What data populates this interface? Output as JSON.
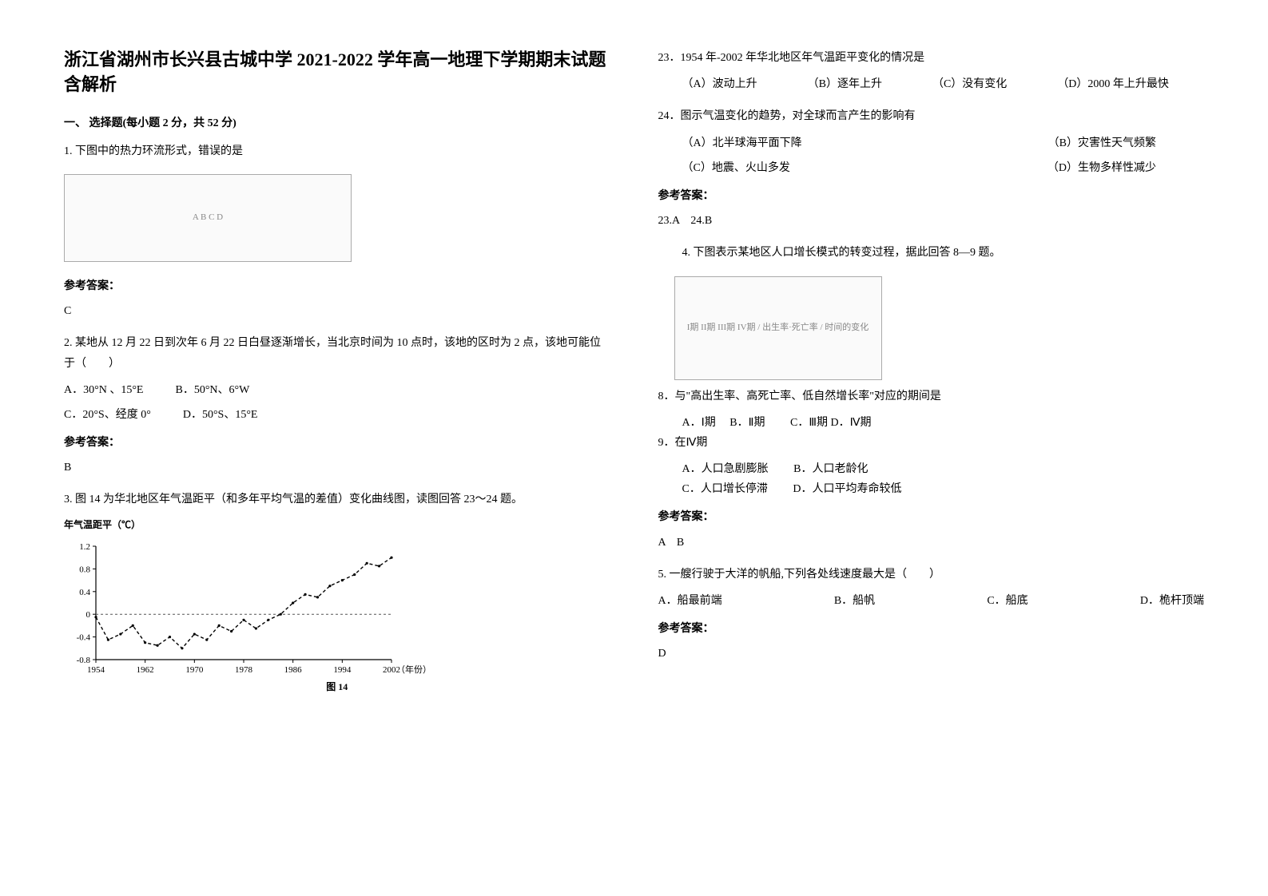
{
  "doc": {
    "title": "浙江省湖州市长兴县古城中学 2021-2022 学年高一地理下学期期末试题含解析",
    "section1_heading": "一、 选择题(每小题 2 分，共 52 分)"
  },
  "q1": {
    "text": "1. 下图中的热力环流形式，错误的是",
    "fig_labels": "A  B  C  D",
    "answer_label": "参考答案：",
    "answer": "C"
  },
  "q2": {
    "text": "2. 某地从 12 月 22 日到次年 6 月 22 日白昼逐渐增长，当北京时间为 10 点时，该地的区时为 2 点，该地可能位于（　　）",
    "optA": "A．30°N 、15°E",
    "optB": "B．50°N、6°W",
    "optC": "C．20°S、经度 0°",
    "optD": "D．50°S、15°E",
    "answer_label": "参考答案：",
    "answer": "B"
  },
  "q3": {
    "text": "3. 图 14 为华北地区年气温距平（和多年平均气温的差值）变化曲线图，读图回答 23～24 题。",
    "chart": {
      "type": "line",
      "ylabel": "年气温距平（℃）",
      "xlabel": "（年份）",
      "caption": "图 14",
      "ylim": [
        -0.8,
        1.2
      ],
      "yticks": [
        -0.8,
        -0.4,
        0,
        0.4,
        0.8,
        1.2
      ],
      "xticks": [
        1954,
        1962,
        1970,
        1978,
        1986,
        1994,
        2002
      ],
      "line_color": "#000000",
      "line_dash": "4,3",
      "zero_line_dash": "3,3",
      "zero_line_color": "#555555",
      "background": "#ffffff",
      "series": {
        "x": [
          1954,
          1956,
          1958,
          1960,
          1962,
          1964,
          1966,
          1968,
          1970,
          1972,
          1974,
          1976,
          1978,
          1980,
          1982,
          1984,
          1986,
          1988,
          1990,
          1992,
          1994,
          1996,
          1998,
          2000,
          2002
        ],
        "y": [
          -0.05,
          -0.45,
          -0.35,
          -0.2,
          -0.5,
          -0.55,
          -0.4,
          -0.6,
          -0.35,
          -0.45,
          -0.2,
          -0.3,
          -0.1,
          -0.25,
          -0.1,
          0.0,
          0.2,
          0.35,
          0.3,
          0.5,
          0.6,
          0.7,
          0.9,
          0.85,
          1.0
        ]
      }
    },
    "sub23": "23．1954 年-2002 年华北地区年气温距平变化的情况是",
    "s23A": "（A）波动上升",
    "s23B": "（B）逐年上升",
    "s23C": "（C）没有变化",
    "s23D": "（D）2000 年上升最快",
    "sub24": "24．图示气温变化的趋势，对全球而言产生的影响有",
    "s24A": "（A）北半球海平面下降",
    "s24B": "（B）灾害性天气频繁",
    "s24C": "（C）地震、火山多发",
    "s24D": "（D）生物多样性减少",
    "answer_label": "参考答案：",
    "answer": "23.A　24.B"
  },
  "q4": {
    "text": "4. 下图表示某地区人口增长模式的转变过程，据此回答 8—9 题。",
    "fig_note": "I期 II期 III期 IV期 / 出生率·死亡率 / 时间的变化",
    "sub8": "8．与\"高出生率、高死亡率、低自然增长率\"对应的期间是",
    "s8A": "A．Ⅰ期",
    "s8B": "B．Ⅱ期",
    "s8C": "C．Ⅲ期",
    "s8D": "D．Ⅳ期",
    "sub9": "9．在Ⅳ期",
    "s9A": "A．人口急剧膨胀",
    "s9B": "B．人口老龄化",
    "s9C": "C．人口增长停滞",
    "s9D": "D．人口平均寿命较低",
    "answer_label": "参考答案：",
    "answer": "A　B"
  },
  "q5": {
    "text": "5. 一艘行驶于大洋的帆船,下列各处线速度最大是（　　）",
    "optA": "A．船最前端",
    "optB": "B．船帆",
    "optC": "C．船底",
    "optD": "D．桅杆顶端",
    "answer_label": "参考答案：",
    "answer": "D"
  }
}
